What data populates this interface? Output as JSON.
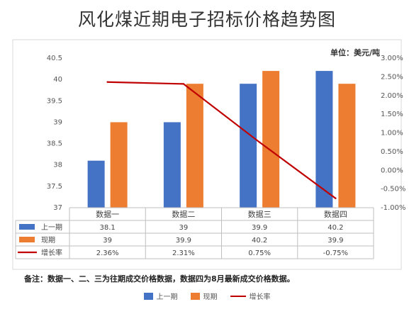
{
  "title": "风化煤近期电子招标价格趋势图",
  "unit": "单位：美元/吨",
  "note": "备注：数据一、二、三为往期成交价格数据，数据四为8月最新成交价格数据。",
  "chart_data": {
    "type": "bar",
    "categories": [
      "数据一",
      "数据二",
      "数据三",
      "数据四"
    ],
    "series": [
      {
        "name": "上一期",
        "values": [
          38.1,
          39,
          39.9,
          40.2
        ],
        "color": "#4472C4",
        "labels": [
          "38.1",
          "39",
          "39.9",
          "40.2"
        ]
      },
      {
        "name": "现期",
        "values": [
          39,
          39.9,
          40.2,
          39.9
        ],
        "color": "#ED7D31",
        "labels": [
          "39",
          "39.9",
          "40.2",
          "39.9"
        ]
      }
    ],
    "line_series": {
      "name": "增长率",
      "values": [
        2.36,
        2.31,
        0.75,
        -0.75
      ],
      "labels": [
        "2.36%",
        "2.31%",
        "0.75%",
        "-0.75%"
      ],
      "color": "#C00000"
    },
    "ylim": [
      37,
      40.5
    ],
    "yticks": [
      "37",
      "37.5",
      "38",
      "38.5",
      "39",
      "39.5",
      "40",
      "40.5"
    ],
    "y2lim": [
      -1.0,
      3.0
    ],
    "y2ticks": [
      "-1.00%",
      "-0.50%",
      "0.00%",
      "0.50%",
      "1.00%",
      "1.50%",
      "2.00%",
      "2.50%",
      "3.00%"
    ],
    "legend_position": "bottom",
    "grid": false
  }
}
